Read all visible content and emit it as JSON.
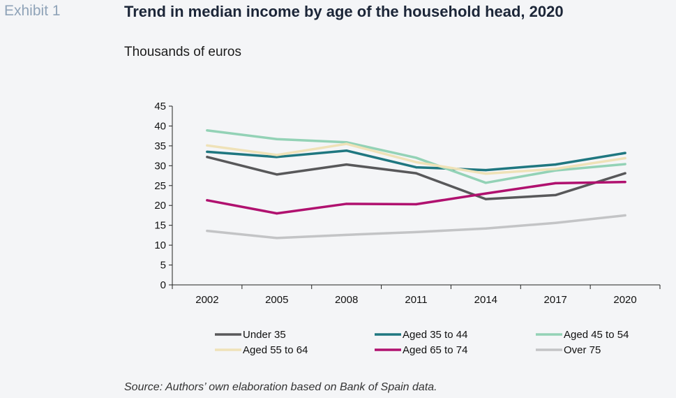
{
  "exhibit_label": "Exhibit 1",
  "source": "Source: Authors’ own elaboration based on Bank of Spain data.",
  "chart_data": {
    "type": "line",
    "title": "Trend in median income by age of the household head, 2020",
    "ylabel": "Thousands of euros",
    "xlabel": "",
    "x": [
      "2002",
      "2005",
      "2008",
      "2011",
      "2014",
      "2017",
      "2020"
    ],
    "ylim": [
      0,
      45
    ],
    "yticks": [
      0,
      5,
      10,
      15,
      20,
      25,
      30,
      35,
      40,
      45
    ],
    "grid": false,
    "legend_position": "bottom",
    "series": [
      {
        "name": "Under 35",
        "color": "#58585a",
        "values": [
          32.2,
          27.8,
          30.3,
          28.1,
          21.6,
          22.6,
          28.1
        ]
      },
      {
        "name": "Aged 35 to 44",
        "color": "#1f7780",
        "values": [
          33.5,
          32.2,
          33.8,
          29.6,
          28.9,
          30.3,
          33.2
        ]
      },
      {
        "name": "Aged 45 to 54",
        "color": "#93d2b6",
        "values": [
          38.9,
          36.7,
          35.9,
          32.0,
          25.7,
          28.8,
          30.4
        ]
      },
      {
        "name": "Aged 55 to 64",
        "color": "#efe2b8",
        "values": [
          35.1,
          32.7,
          35.5,
          30.9,
          28.0,
          29.2,
          31.9
        ]
      },
      {
        "name": "Aged 65 to 74",
        "color": "#b0116f",
        "values": [
          21.3,
          18.0,
          20.4,
          20.3,
          23.0,
          25.6,
          25.9
        ]
      },
      {
        "name": "Over 75",
        "color": "#c3c4c6",
        "values": [
          13.6,
          11.8,
          12.6,
          13.3,
          14.2,
          15.6,
          17.5
        ]
      }
    ]
  }
}
